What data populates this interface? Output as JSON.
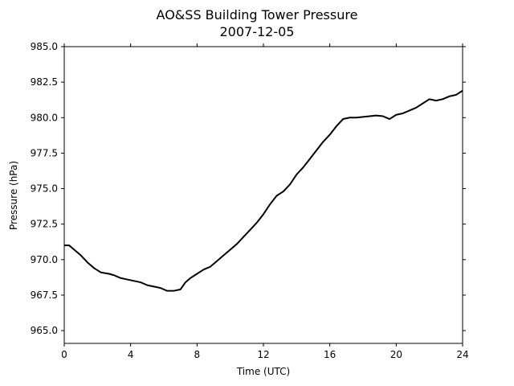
{
  "chart_data": {
    "type": "line",
    "title": "AO&SS Building Tower Pressure",
    "subtitle": "2007-12-05",
    "xlabel": "Time (UTC)",
    "ylabel": "Pressure (hPa)",
    "xlim": [
      0,
      24
    ],
    "ylim": [
      964.1,
      985.0
    ],
    "xticks": [
      0,
      4,
      8,
      12,
      16,
      20,
      24
    ],
    "yticks": [
      965.0,
      967.5,
      970.0,
      972.5,
      975.0,
      977.5,
      980.0,
      982.5,
      985.0
    ],
    "ytick_labels": [
      "965.0",
      "967.5",
      "970.0",
      "972.5",
      "975.0",
      "977.5",
      "980.0",
      "982.5",
      "985.0"
    ],
    "grid": false,
    "line_color": "#000000",
    "series": [
      {
        "x": [
          0,
          0.3,
          0.6,
          1.0,
          1.4,
          1.8,
          2.2,
          2.7,
          3.0,
          3.4,
          3.8,
          4.2,
          4.6,
          5.0,
          5.4,
          5.8,
          6.2,
          6.6,
          7.0,
          7.3,
          7.6,
          8.0,
          8.4,
          8.8,
          9.2,
          9.6,
          10.0,
          10.4,
          10.8,
          11.2,
          11.6,
          12.0,
          12.4,
          12.8,
          13.2,
          13.6,
          14.0,
          14.4,
          14.8,
          15.2,
          15.6,
          16.0,
          16.4,
          16.8,
          17.2,
          17.6,
          18.0,
          18.4,
          18.8,
          19.2,
          19.6,
          20.0,
          20.4,
          20.8,
          21.2,
          21.6,
          22.0,
          22.4,
          22.8,
          23.2,
          23.6,
          24.0
        ],
        "y": [
          971.0,
          971.0,
          970.7,
          970.3,
          969.8,
          969.4,
          969.1,
          969.0,
          968.9,
          968.7,
          968.6,
          968.5,
          968.4,
          968.2,
          968.1,
          968.0,
          967.8,
          967.8,
          967.9,
          968.4,
          968.7,
          969.0,
          969.3,
          969.5,
          969.9,
          970.3,
          970.7,
          971.1,
          971.6,
          972.1,
          972.6,
          973.2,
          973.9,
          974.5,
          974.8,
          975.3,
          976.0,
          976.5,
          977.1,
          977.7,
          978.3,
          978.8,
          979.4,
          979.9,
          980.0,
          980.0,
          980.05,
          980.1,
          980.15,
          980.1,
          979.9,
          980.2,
          980.3,
          980.5,
          980.7,
          981.0,
          981.3,
          981.2,
          981.3,
          981.5,
          981.6,
          981.9
        ]
      }
    ]
  }
}
